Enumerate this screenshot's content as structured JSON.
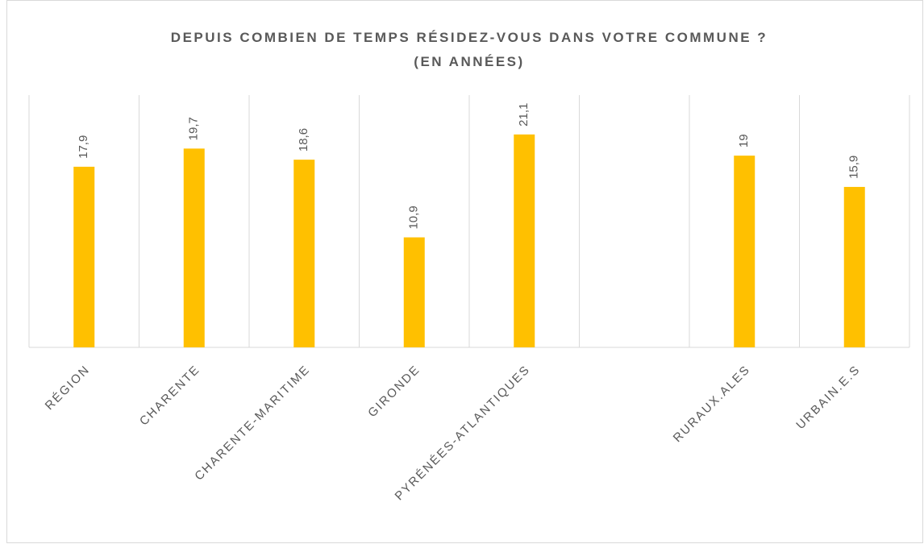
{
  "chart_data": {
    "type": "bar",
    "title": "DEPUIS COMBIEN DE TEMPS RÉSIDEZ-VOUS DANS VOTRE COMMUNE ?",
    "subtitle": "(EN ANNÉES)",
    "categories": [
      "RÉGION",
      "CHARENTE",
      "CHARENTE-MARITIME",
      "GIRONDE",
      "PYRÉNÉES-ATLANTIQUES",
      null,
      "RURAUX.ALES",
      "URBAIN.E.S"
    ],
    "values": [
      17.9,
      19.7,
      18.6,
      10.9,
      21.1,
      null,
      19,
      15.9
    ],
    "value_labels": [
      "17,9",
      "19,7",
      "18,6",
      "10,9",
      "21,1",
      null,
      "19",
      "15,9"
    ],
    "color": "#ffc000",
    "ylim": [
      0,
      25
    ]
  }
}
